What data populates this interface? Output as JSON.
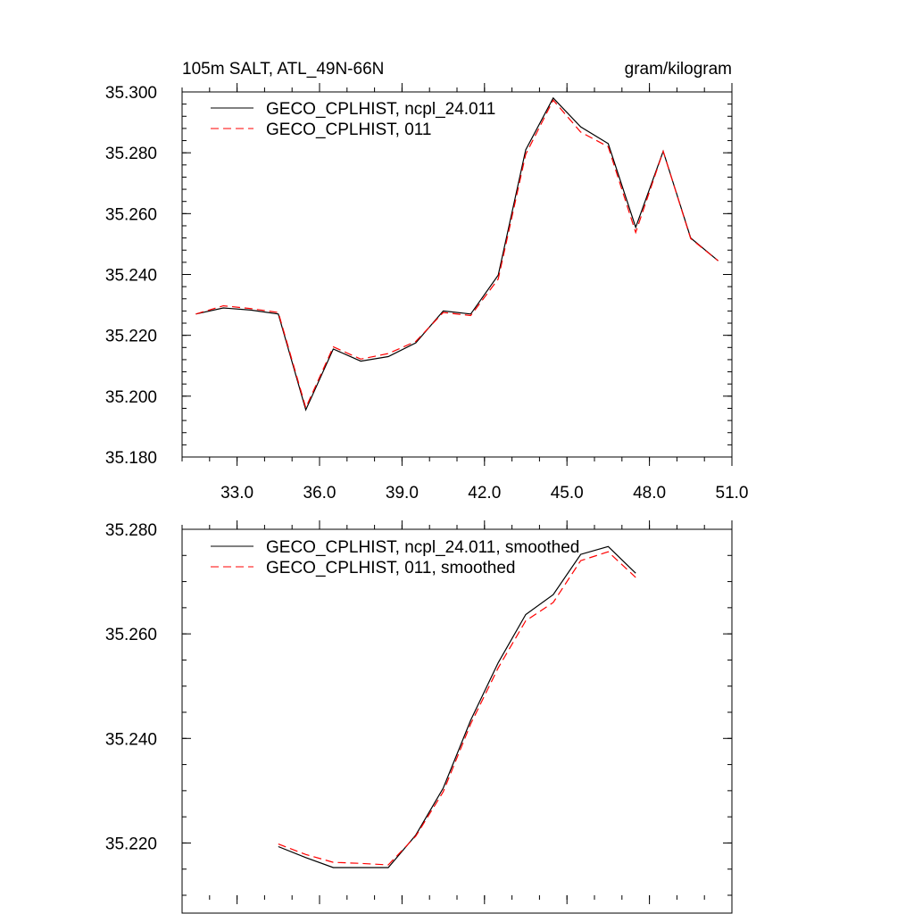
{
  "chart_data": [
    {
      "type": "line",
      "title_left": "105m SALT, ATL_49N-66N",
      "title_right": "gram/kilogram",
      "xlim": [
        31.0,
        51.0
      ],
      "ylim": [
        35.18,
        35.3
      ],
      "x_ticks": [
        33.0,
        36.0,
        39.0,
        42.0,
        45.0,
        48.0,
        51.0
      ],
      "x_tick_labels": [
        "33.0",
        "36.0",
        "39.0",
        "42.0",
        "45.0",
        "48.0",
        "51.0"
      ],
      "y_ticks": [
        35.18,
        35.2,
        35.22,
        35.24,
        35.26,
        35.28,
        35.3
      ],
      "y_tick_labels": [
        "35.180",
        "35.200",
        "35.220",
        "35.240",
        "35.260",
        "35.280",
        "35.300"
      ],
      "legend_placement": "top-left",
      "x": [
        31.5,
        32.5,
        33.5,
        34.5,
        35.5,
        36.5,
        37.5,
        38.5,
        39.5,
        40.5,
        41.5,
        42.5,
        43.5,
        44.5,
        45.5,
        46.5,
        47.5,
        48.5,
        49.5,
        50.5
      ],
      "series": [
        {
          "name": "GECO_CPLHIST, ncpl_24.011",
          "color": "#000000",
          "dash": "solid",
          "values": [
            35.227,
            35.229,
            35.2283,
            35.227,
            35.1955,
            35.2155,
            35.2115,
            35.213,
            35.2175,
            35.228,
            35.227,
            35.2398,
            35.281,
            35.298,
            35.2885,
            35.283,
            35.2555,
            35.2805,
            35.252,
            35.2445
          ]
        },
        {
          "name": "GECO_CPLHIST, 011",
          "color": "#ff0000",
          "dash": "dashed",
          "values": [
            35.227,
            35.2297,
            35.2288,
            35.2275,
            35.1962,
            35.2162,
            35.2122,
            35.214,
            35.218,
            35.2275,
            35.2265,
            35.2385,
            35.2795,
            35.2973,
            35.2868,
            35.282,
            35.2538,
            35.2805,
            35.2518,
            35.2445
          ]
        }
      ]
    },
    {
      "type": "line",
      "xlim": [
        31.0,
        51.0
      ],
      "ylim": [
        35.21,
        35.28
      ],
      "x_ticks": [
        33.0,
        36.0,
        39.0,
        42.0,
        45.0,
        48.0,
        51.0
      ],
      "y_ticks": [
        35.22,
        35.24,
        35.26,
        35.28
      ],
      "y_tick_labels": [
        "35.220",
        "35.240",
        "35.260",
        "35.280"
      ],
      "legend_placement": "top-left",
      "x": [
        34.5,
        35.5,
        36.5,
        37.5,
        38.5,
        39.5,
        40.5,
        41.5,
        42.5,
        43.5,
        44.5,
        45.5,
        46.5,
        47.5
      ],
      "series": [
        {
          "name": "GECO_CPLHIST, ncpl_24.011, smoothed",
          "color": "#000000",
          "dash": "solid",
          "values": [
            35.2193,
            35.2172,
            35.2153,
            35.2153,
            35.2153,
            35.2215,
            35.2305,
            35.2435,
            35.2545,
            35.2637,
            35.2675,
            35.2752,
            35.2767,
            35.2716
          ]
        },
        {
          "name": "GECO_CPLHIST, 011, smoothed",
          "color": "#ff0000",
          "dash": "dashed",
          "values": [
            35.2198,
            35.2178,
            35.2163,
            35.2161,
            35.2158,
            35.2213,
            35.2298,
            35.2428,
            35.2535,
            35.2625,
            35.266,
            35.274,
            35.2757,
            35.2708
          ]
        }
      ]
    }
  ]
}
